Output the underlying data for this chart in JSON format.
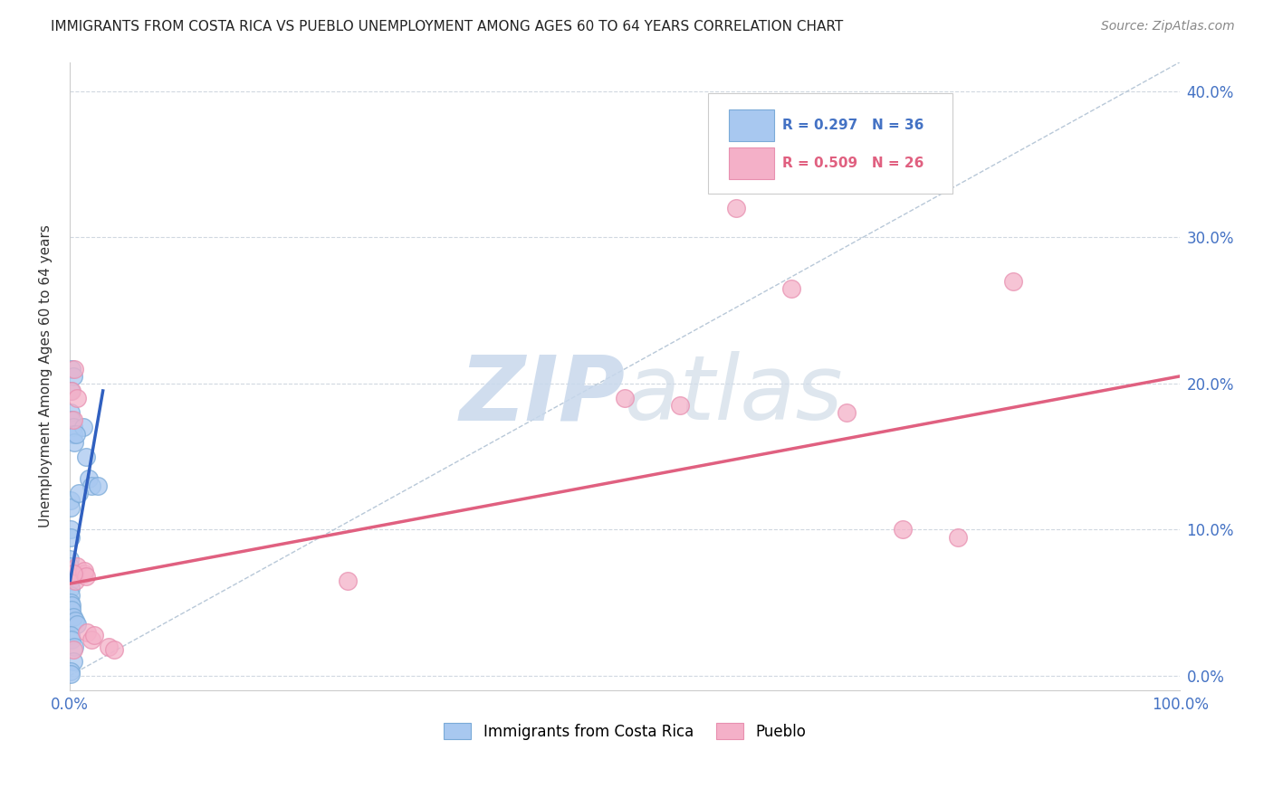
{
  "title": "IMMIGRANTS FROM COSTA RICA VS PUEBLO UNEMPLOYMENT AMONG AGES 60 TO 64 YEARS CORRELATION CHART",
  "source": "Source: ZipAtlas.com",
  "ylabel": "Unemployment Among Ages 60 to 64 years",
  "legend1_r": "R = 0.297",
  "legend1_n": "N = 36",
  "legend2_r": "R = 0.509",
  "legend2_n": "N = 26",
  "legend1_label": "Immigrants from Costa Rica",
  "legend2_label": "Pueblo",
  "blue_color": "#a8c8f0",
  "pink_color": "#f4b0c8",
  "blue_edge_color": "#7aaad8",
  "pink_edge_color": "#e890b0",
  "blue_line_color": "#3060c0",
  "pink_line_color": "#e06080",
  "dash_color": "#b8c8d8",
  "watermark_color": "#c8d8ec",
  "tick_color": "#4472c4",
  "grid_color": "#d0d8e0",
  "blue_scatter_x": [
    0.002,
    0.003,
    0.001,
    0.001,
    0.0015,
    0.003,
    0.003,
    0.004,
    0.001,
    0.001,
    0.0008,
    0.001,
    0.0005,
    0.0005,
    0.0006,
    0.0007,
    0.001,
    0.0012,
    0.0015,
    0.002,
    0.003,
    0.005,
    0.007,
    0.012,
    0.015,
    0.017,
    0.02,
    0.025,
    0.001,
    0.002,
    0.004,
    0.003,
    0.0008,
    0.001,
    0.006,
    0.008
  ],
  "blue_scatter_y": [
    0.21,
    0.205,
    0.195,
    0.18,
    0.175,
    0.17,
    0.165,
    0.16,
    0.12,
    0.115,
    0.1,
    0.095,
    0.08,
    0.075,
    0.065,
    0.06,
    0.055,
    0.05,
    0.048,
    0.045,
    0.04,
    0.038,
    0.035,
    0.17,
    0.15,
    0.135,
    0.13,
    0.13,
    0.028,
    0.025,
    0.02,
    0.01,
    0.003,
    0.001,
    0.165,
    0.125
  ],
  "pink_scatter_x": [
    0.002,
    0.003,
    0.004,
    0.007,
    0.005,
    0.005,
    0.007,
    0.013,
    0.013,
    0.015,
    0.016,
    0.02,
    0.022,
    0.035,
    0.04,
    0.5,
    0.55,
    0.6,
    0.65,
    0.7,
    0.75,
    0.8,
    0.85,
    0.003,
    0.25,
    0.003
  ],
  "pink_scatter_y": [
    0.195,
    0.175,
    0.21,
    0.19,
    0.07,
    0.065,
    0.075,
    0.07,
    0.072,
    0.068,
    0.03,
    0.025,
    0.028,
    0.02,
    0.018,
    0.19,
    0.185,
    0.32,
    0.265,
    0.18,
    0.1,
    0.095,
    0.27,
    0.07,
    0.065,
    0.018
  ],
  "blue_line_x": [
    0.0005,
    0.03
  ],
  "blue_line_y": [
    0.065,
    0.195
  ],
  "pink_line_x": [
    0.0,
    1.0
  ],
  "pink_line_y": [
    0.063,
    0.205
  ],
  "dashed_line_x": [
    0.0,
    1.0
  ],
  "dashed_line_y": [
    0.0,
    0.42
  ],
  "xlim": [
    0.0,
    1.0
  ],
  "ylim": [
    -0.01,
    0.42
  ],
  "yticks": [
    0.0,
    0.1,
    0.2,
    0.3,
    0.4
  ],
  "ytick_labels": [
    "0.0%",
    "10.0%",
    "20.0%",
    "30.0%",
    "40.0%"
  ],
  "xtick_labels_left": "0.0%",
  "xtick_labels_right": "100.0%"
}
